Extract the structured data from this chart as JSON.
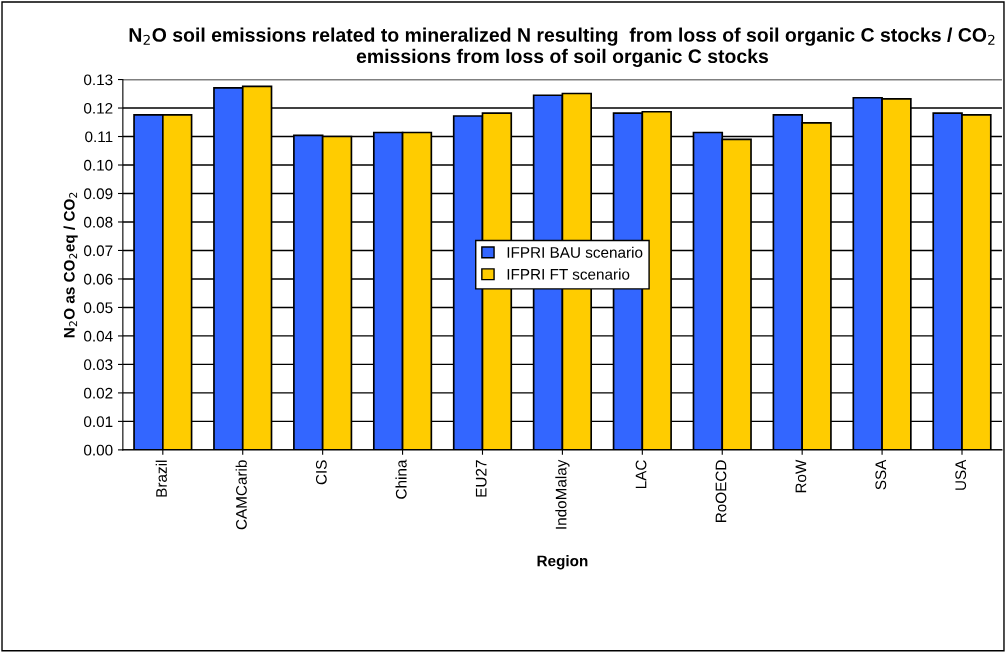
{
  "chart_data": {
    "type": "bar",
    "title": "N$_{2}$O soil emissions related to mineralized N resulting  from loss of soil organic C stocks / CO$_{2}$ emissions from loss of soil organic C stocks",
    "xlabel": "Region",
    "ylabel": "N$_{2}$O as CO$_{2}$eq / CO$_{2}$",
    "categories": [
      "Brazil",
      "CAMCarib",
      "CIS",
      "China",
      "EU27",
      "IndoMalay",
      "LAC",
      "RoOECD",
      "RoW",
      "SSA",
      "USA"
    ],
    "series": [
      {
        "name": "IFPRI BAU scenario",
        "color": "#3366ff",
        "values": [
          0.1176,
          0.1271,
          0.1104,
          0.1114,
          0.1172,
          0.1245,
          0.1182,
          0.1114,
          0.1176,
          0.1236,
          0.1182
        ]
      },
      {
        "name": "IFPRI FT scenario",
        "color": "#ffcc00",
        "values": [
          0.1176,
          0.1276,
          0.11,
          0.1114,
          0.1182,
          0.1251,
          0.1187,
          0.109,
          0.1148,
          0.1232,
          0.1176
        ]
      }
    ],
    "ylim": [
      0,
      0.13
    ],
    "yticks": [
      {
        "value": 0,
        "label": "0.00"
      },
      {
        "value": 0.01,
        "label": "0.01"
      },
      {
        "value": 0.02,
        "label": "0.02"
      },
      {
        "value": 0.03,
        "label": "0.03"
      },
      {
        "value": 0.04,
        "label": "0.04"
      },
      {
        "value": 0.05,
        "label": "0.05"
      },
      {
        "value": 0.06,
        "label": "0.06"
      },
      {
        "value": 0.07,
        "label": "0.07"
      },
      {
        "value": 0.08,
        "label": "0.08"
      },
      {
        "value": 0.09,
        "label": "0.09"
      },
      {
        "value": 0.1,
        "label": "0.10"
      },
      {
        "value": 0.11,
        "label": "0.11"
      },
      {
        "value": 0.12,
        "label": "0.12"
      },
      {
        "value": 0.13,
        "label": "0.13"
      }
    ],
    "grid": "y",
    "legend": "center"
  }
}
